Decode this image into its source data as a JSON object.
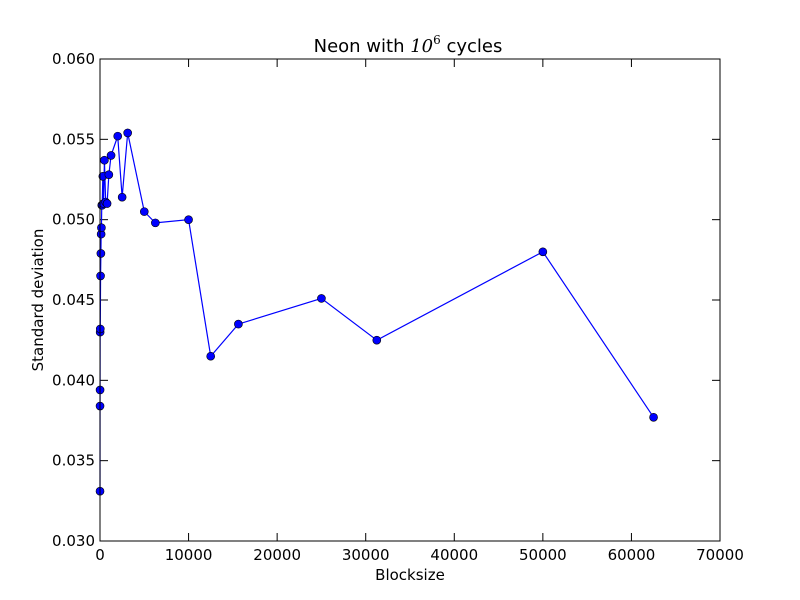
{
  "chart_data": {
    "type": "line",
    "title": {
      "prefix": "Neon with ",
      "math_base": "10",
      "math_exponent": "6",
      "suffix": " cycles"
    },
    "xlabel": "Blocksize",
    "ylabel": "Standard deviation",
    "xlim": [
      0,
      70000
    ],
    "ylim": [
      0.03,
      0.06
    ],
    "xticks": [
      0,
      10000,
      20000,
      30000,
      40000,
      50000,
      60000,
      70000
    ],
    "xtick_labels": [
      "0",
      "10000",
      "20000",
      "30000",
      "40000",
      "50000",
      "60000",
      "70000"
    ],
    "yticks": [
      0.03,
      0.035,
      0.04,
      0.045,
      0.05,
      0.055,
      0.06
    ],
    "ytick_labels": [
      "0.030",
      "0.035",
      "0.040",
      "0.045",
      "0.050",
      "0.055",
      "0.060"
    ],
    "grid": false,
    "series": [
      {
        "color": "#0000ff",
        "marker": "circle",
        "x": [
          2,
          4,
          8,
          16,
          32,
          64,
          100,
          128,
          160,
          200,
          250,
          320,
          400,
          500,
          640,
          800,
          1000,
          1250,
          2000,
          2500,
          3125,
          5000,
          6250,
          10000,
          12500,
          15625,
          25000,
          31250,
          50000,
          62500
        ],
        "y": [
          0.0331,
          0.0384,
          0.0394,
          0.043,
          0.0432,
          0.0465,
          0.0479,
          0.0491,
          0.0495,
          0.0509,
          0.0509,
          0.0527,
          0.051,
          0.0537,
          0.0511,
          0.051,
          0.0528,
          0.054,
          0.0552,
          0.0514,
          0.0554,
          0.0505,
          0.0498,
          0.05,
          0.0415,
          0.0435,
          0.0451,
          0.0425,
          0.048,
          0.0377
        ]
      }
    ]
  }
}
